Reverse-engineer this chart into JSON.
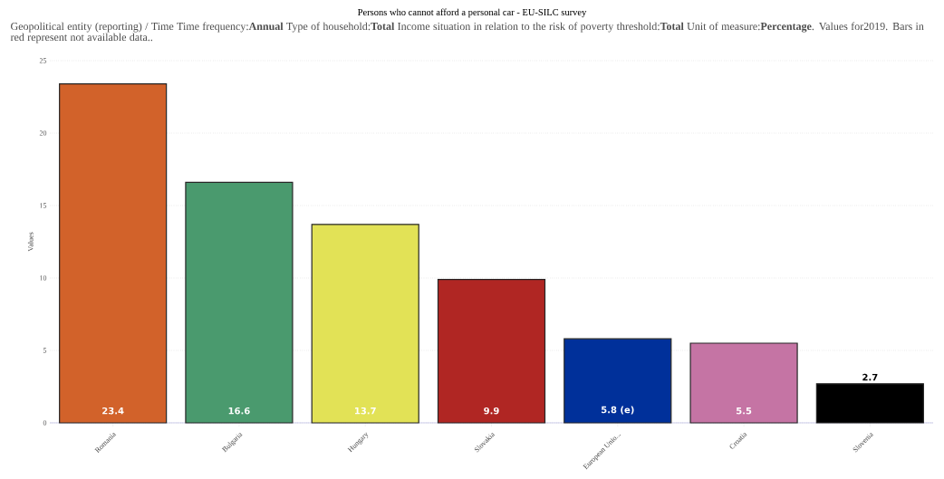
{
  "chart_data": {
    "type": "bar",
    "title": "Persons who cannot afford a personal car - EU-SILC survey",
    "subtitle": "Geopolitical entity (reporting) / Time  Time frequency:**Annual**  Type of household:**Total**  Income situation in relation to the risk of poverty threshold:**Total**  Unit of measure:**Percentage**. Values for2019. Bars in red represent not available data..",
    "ylabel": "Values",
    "categories": [
      "Romania",
      "Bulgaria",
      "Hungary",
      "Slovakia",
      "European Unio...",
      "Croatia",
      "Slovenia"
    ],
    "values": [
      23.4,
      16.6,
      13.7,
      9.9,
      5.8,
      5.5,
      2.7
    ],
    "colors": [
      "#d2622a",
      "#4a9a6e",
      "#e2e256",
      "#b02623",
      "#00309a",
      "#c574a4",
      "#000000"
    ],
    "value_labels": [
      "23.4",
      "16.6",
      "13.7",
      "9.9",
      "5.8 (e)",
      "5.5",
      "2.7"
    ],
    "ylim": [
      0,
      25
    ],
    "yticks": [
      0,
      5,
      10,
      15,
      20,
      25
    ],
    "grid": "y"
  }
}
